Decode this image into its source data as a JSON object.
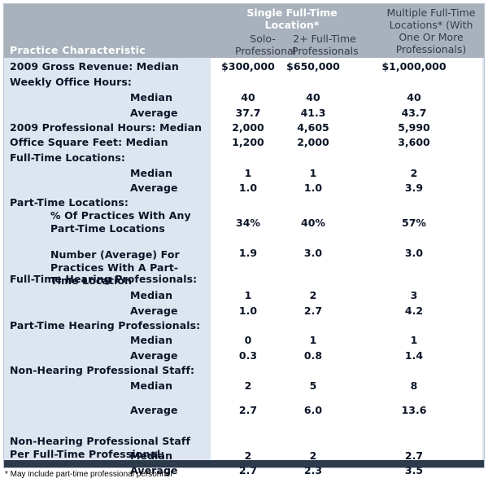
{
  "header": {
    "first_col": "Practice Characteristic",
    "group_single": "Single Full-Time Location*",
    "col_solo": "Solo-Professional",
    "col_two_plus": "2+ Full-Time Professionals",
    "col_multiple": "Multiple Full-Time Locations* (With One Or More Professionals)"
  },
  "rows": [
    {
      "label": "2009 Gross Revenue: Median",
      "indent": false,
      "v1": "$300,000",
      "v2": "$650,000",
      "v3": "$1,000,000"
    },
    {
      "label": "Weekly Office Hours:",
      "indent": false,
      "v1": "",
      "v2": "",
      "v3": ""
    },
    {
      "label": "Median",
      "indent": true,
      "v1": "40",
      "v2": "40",
      "v3": "40"
    },
    {
      "label": "Average",
      "indent": true,
      "v1": "37.7",
      "v2": "41.3",
      "v3": "43.7"
    },
    {
      "label": "2009 Professional Hours: Median",
      "indent": false,
      "v1": "2,000",
      "v2": "4,605",
      "v3": "5,990"
    },
    {
      "label": "Office Square Feet: Median",
      "indent": false,
      "v1": "1,200",
      "v2": "2,000",
      "v3": "3,600"
    },
    {
      "label": "Full-Time Locations:",
      "indent": false,
      "v1": "",
      "v2": "",
      "v3": ""
    },
    {
      "label": "Median",
      "indent": true,
      "v1": "1",
      "v2": "1",
      "v3": "2"
    },
    {
      "label": "Average",
      "indent": true,
      "v1": "1.0",
      "v2": "1.0",
      "v3": "3.9"
    },
    {
      "label": "Part-Time Locations:",
      "indent": false,
      "v1": "",
      "v2": "",
      "v3": ""
    },
    {
      "label": "% Of Practices With Any Part-Time Locations",
      "indent": "wrap",
      "v1": "34%",
      "v2": "40%",
      "v3": "57%"
    },
    {
      "label": "Number (Average) For Practices With A Part-Time Location",
      "indent": "wrap",
      "v1": "1.9",
      "v2": "3.0",
      "v3": "3.0"
    },
    {
      "label": "Full-Time Hearing Professionals:",
      "indent": false,
      "v1": "",
      "v2": "",
      "v3": ""
    },
    {
      "label": "Median",
      "indent": true,
      "v1": "1",
      "v2": "2",
      "v3": "3"
    },
    {
      "label": "Average",
      "indent": true,
      "v1": "1.0",
      "v2": "2.7",
      "v3": "4.2"
    },
    {
      "label": "Part-Time Hearing Professionals:",
      "indent": false,
      "v1": "",
      "v2": "",
      "v3": ""
    },
    {
      "label": "Median",
      "indent": true,
      "v1": "0",
      "v2": "1",
      "v3": "1"
    },
    {
      "label": "Average",
      "indent": true,
      "v1": "0.3",
      "v2": "0.8",
      "v3": "1.4"
    },
    {
      "label": "Non-Hearing Professional Staff:",
      "indent": false,
      "v1": "",
      "v2": "",
      "v3": ""
    },
    {
      "label": "Median",
      "indent": true,
      "v1": "2",
      "v2": "5",
      "v3": "8"
    },
    {
      "label": "Average",
      "indent": true,
      "v1": "2.7",
      "v2": "6.0",
      "v3": "13.6"
    },
    {
      "label": "Non-Hearing Professional Staff Per Full-Time Professional:",
      "indent": "wrap2",
      "v1": "",
      "v2": "",
      "v3": ""
    },
    {
      "label": "Median",
      "indent": true,
      "v1": "2",
      "v2": "2",
      "v3": "2.7"
    },
    {
      "label": "Average",
      "indent": true,
      "v1": "2.7",
      "v2": "2.3",
      "v3": "3.5"
    }
  ],
  "footnote": "*   May include part-time professional personnel"
}
